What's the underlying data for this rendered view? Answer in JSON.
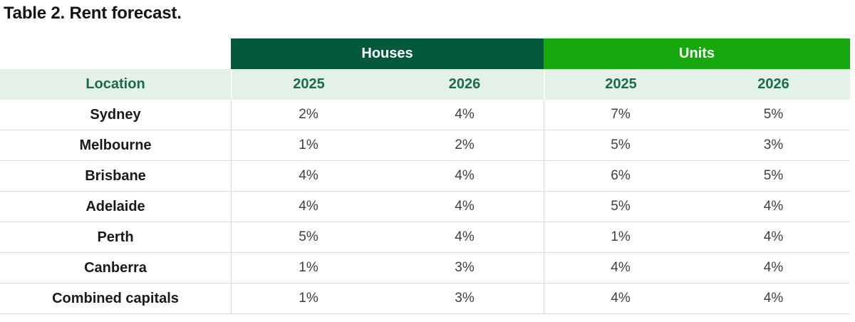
{
  "title": "Table 2. Rent forecast.",
  "table": {
    "group_headers": {
      "houses": "Houses",
      "units": "Units"
    },
    "column_headers": {
      "location": "Location",
      "houses_2025": "2025",
      "houses_2026": "2026",
      "units_2025": "2025",
      "units_2026": "2026"
    },
    "rows": [
      {
        "location": "Sydney",
        "values": [
          "2%",
          "4%",
          "7%",
          "5%"
        ]
      },
      {
        "location": "Melbourne",
        "values": [
          "1%",
          "2%",
          "5%",
          "3%"
        ]
      },
      {
        "location": "Brisbane",
        "values": [
          "4%",
          "4%",
          "6%",
          "5%"
        ]
      },
      {
        "location": "Adelaide",
        "values": [
          "4%",
          "4%",
          "5%",
          "4%"
        ]
      },
      {
        "location": "Perth",
        "values": [
          "5%",
          "4%",
          "1%",
          "4%"
        ]
      },
      {
        "location": "Canberra",
        "values": [
          "1%",
          "3%",
          "4%",
          "4%"
        ]
      },
      {
        "location": "Combined capitals",
        "values": [
          "1%",
          "3%",
          "4%",
          "4%"
        ]
      }
    ],
    "colors": {
      "houses_header_bg": "#05593B",
      "units_header_bg": "#17A70E",
      "subheader_bg": "#E4F1E7",
      "subheader_text": "#1A6B4B",
      "header_text": "#FFFFFF",
      "row_border": "#DBDBDB",
      "location_text": "#1A1A1A",
      "value_text": "#3F3F3F"
    }
  },
  "chart_data": {
    "type": "table",
    "title": "Table 2. Rent forecast.",
    "column_groups": [
      "Houses",
      "Units"
    ],
    "columns": [
      "Location",
      "Houses 2025",
      "Houses 2026",
      "Units 2025",
      "Units 2026"
    ],
    "rows": [
      [
        "Sydney",
        "2%",
        "4%",
        "7%",
        "5%"
      ],
      [
        "Melbourne",
        "1%",
        "2%",
        "5%",
        "3%"
      ],
      [
        "Brisbane",
        "4%",
        "4%",
        "6%",
        "5%"
      ],
      [
        "Adelaide",
        "4%",
        "4%",
        "5%",
        "4%"
      ],
      [
        "Perth",
        "5%",
        "4%",
        "1%",
        "4%"
      ],
      [
        "Canberra",
        "1%",
        "3%",
        "4%",
        "4%"
      ],
      [
        "Combined capitals",
        "1%",
        "3%",
        "4%",
        "4%"
      ]
    ]
  }
}
